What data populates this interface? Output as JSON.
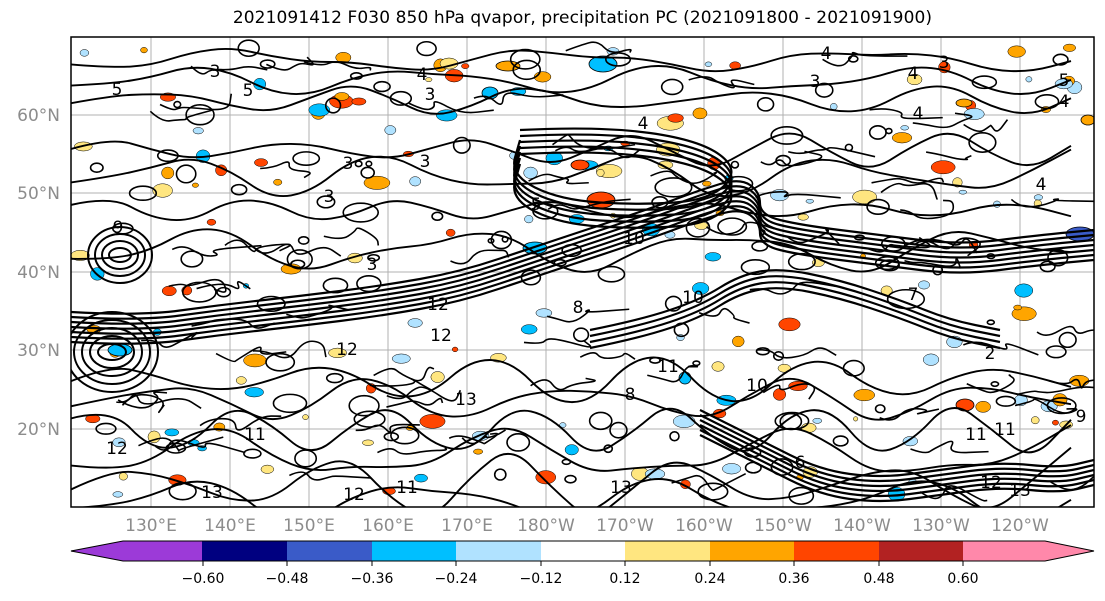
{
  "title": "2021091412 F030 850 hPa qvapor, precipitation PC (2021091800 - 2021091900)",
  "map": {
    "lat_labels": [
      "60°N",
      "50°N",
      "40°N",
      "30°N",
      "20°N"
    ],
    "lon_labels": [
      "130°E",
      "140°E",
      "150°E",
      "160°E",
      "170°E",
      "180°W",
      "170°W",
      "160°W",
      "150°W",
      "140°W",
      "130°W",
      "120°W"
    ],
    "contour_labels": [
      "4",
      "4",
      "4",
      "4",
      "4",
      "5",
      "4",
      "3",
      "3",
      "3",
      "3",
      "10",
      "5",
      "5",
      "12",
      "12",
      "13",
      "11",
      "12",
      "11",
      "11",
      "13",
      "12",
      "11",
      "13",
      "8",
      "8",
      "10",
      "10",
      "7",
      "9",
      "6",
      "11",
      "12",
      "13",
      "12",
      "5",
      "3",
      "3",
      "3",
      "3",
      "4",
      "9",
      "2"
    ]
  },
  "colorbar": {
    "colors": [
      "#9c3ad8",
      "#000080",
      "#3a5bc8",
      "#00bfff",
      "#b0e2ff",
      "#ffffff",
      "#ffe680",
      "#ffa500",
      "#ff4500",
      "#b22222",
      "#ff88aa"
    ],
    "tick_labels": [
      "−0.60",
      "−0.48",
      "−0.36",
      "−0.24",
      "−0.12",
      "0.12",
      "0.24",
      "0.36",
      "0.48",
      "0.60"
    ]
  }
}
